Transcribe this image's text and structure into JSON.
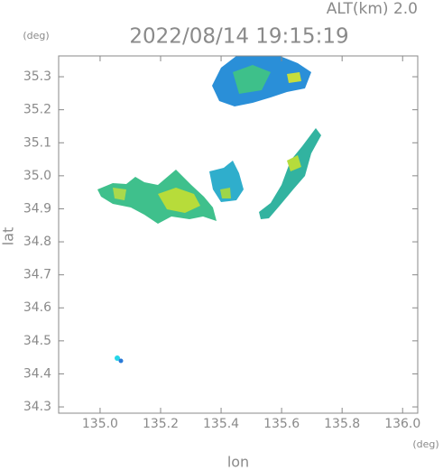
{
  "chart_data": {
    "type": "radar-map",
    "annotation": "ALT(km) 2.0",
    "title": "2022/08/14 19:15:19",
    "y_unit": "(deg)",
    "x_unit": "(deg)",
    "ylabel": "lat",
    "xlabel": "lon",
    "xlim": [
      134.863,
      136.05
    ],
    "ylim": [
      34.281,
      35.363
    ],
    "xticks": [
      {
        "value": 135,
        "label": "135.0"
      },
      {
        "value": 135.2,
        "label": "135.2"
      },
      {
        "value": 135.4,
        "label": "135.4"
      },
      {
        "value": 135.6,
        "label": "135.6"
      },
      {
        "value": 135.8,
        "label": "135.8"
      },
      {
        "value": 136,
        "label": "136.0"
      }
    ],
    "yticks": [
      34.3,
      34.4,
      34.5,
      34.6,
      34.7,
      34.8,
      34.9,
      {
        "value": 35,
        "label": "35.0"
      },
      35.1,
      35.2,
      35.3
    ]
  }
}
